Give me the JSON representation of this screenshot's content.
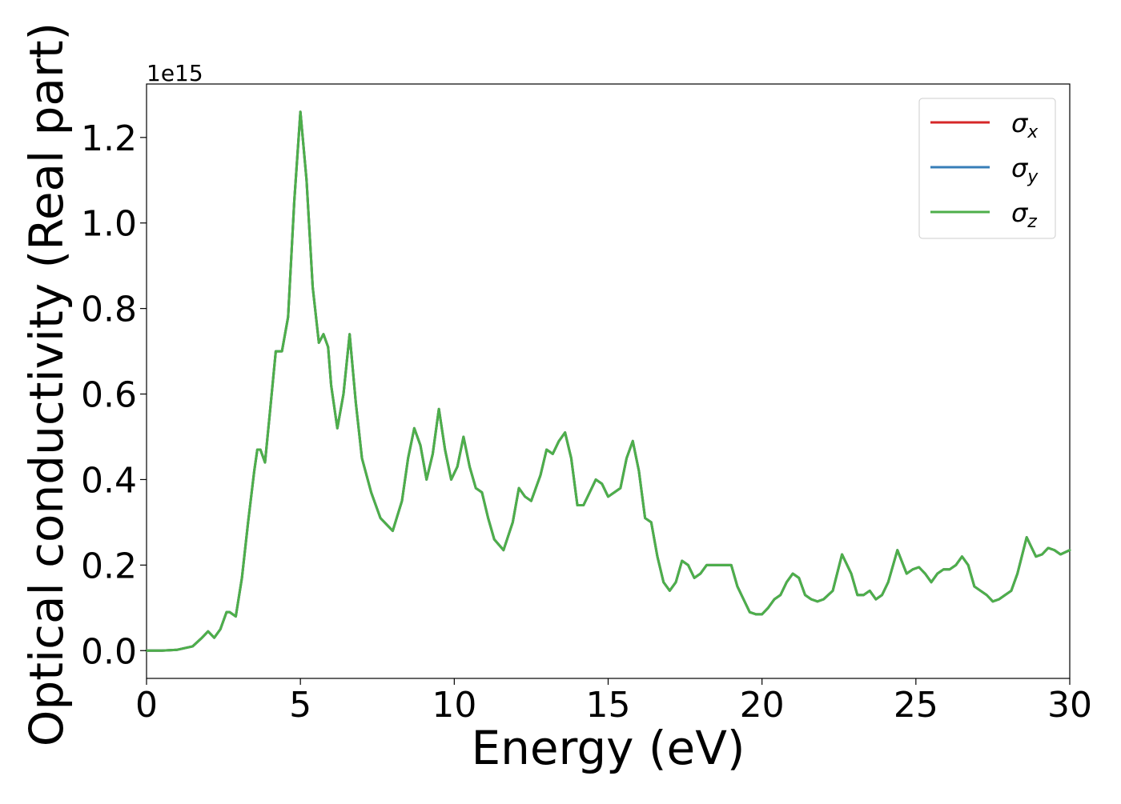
{
  "chart_data": {
    "type": "line",
    "xlabel": "Energy (eV)",
    "ylabel": "Optical conductivity (Real part)",
    "y_multiplier": "1e15",
    "xlim": [
      0,
      30
    ],
    "ylim": [
      -0.065,
      1.325
    ],
    "xticks": [
      0,
      5,
      10,
      15,
      20,
      25,
      30
    ],
    "xtick_labels": [
      "0",
      "5",
      "10",
      "15",
      "20",
      "25",
      "30"
    ],
    "yticks": [
      0.0,
      0.2,
      0.4,
      0.6,
      0.8,
      1.0,
      1.2
    ],
    "ytick_labels": [
      "0.0",
      "0.2",
      "0.4",
      "0.6",
      "0.8",
      "1.0",
      "1.2"
    ],
    "grid": false,
    "legend_position": "top-right",
    "x": [
      0,
      0.5,
      1.0,
      1.5,
      1.8,
      2.0,
      2.2,
      2.4,
      2.6,
      2.7,
      2.9,
      3.1,
      3.3,
      3.5,
      3.6,
      3.7,
      3.85,
      4.0,
      4.2,
      4.4,
      4.6,
      4.8,
      5.0,
      5.2,
      5.4,
      5.6,
      5.75,
      5.9,
      6.0,
      6.2,
      6.4,
      6.6,
      6.8,
      7.0,
      7.3,
      7.6,
      8.0,
      8.3,
      8.5,
      8.7,
      8.9,
      9.1,
      9.3,
      9.5,
      9.7,
      9.9,
      10.1,
      10.3,
      10.5,
      10.7,
      10.9,
      11.1,
      11.3,
      11.6,
      11.9,
      12.1,
      12.3,
      12.5,
      12.8,
      13.0,
      13.2,
      13.4,
      13.6,
      13.8,
      14.0,
      14.2,
      14.4,
      14.6,
      14.8,
      15.0,
      15.2,
      15.4,
      15.6,
      15.8,
      16.0,
      16.2,
      16.4,
      16.6,
      16.8,
      17.0,
      17.2,
      17.4,
      17.6,
      17.8,
      18.0,
      18.2,
      18.4,
      18.6,
      18.8,
      19.0,
      19.2,
      19.4,
      19.6,
      19.8,
      20.0,
      20.2,
      20.4,
      20.6,
      20.8,
      21.0,
      21.2,
      21.4,
      21.6,
      21.8,
      22.0,
      22.3,
      22.6,
      22.9,
      23.1,
      23.3,
      23.5,
      23.7,
      23.9,
      24.1,
      24.4,
      24.7,
      24.9,
      25.1,
      25.3,
      25.5,
      25.7,
      25.9,
      26.1,
      26.3,
      26.5,
      26.7,
      26.9,
      27.1,
      27.3,
      27.5,
      27.7,
      27.9,
      28.1,
      28.3,
      28.6,
      28.9,
      29.1,
      29.3,
      29.5,
      29.7,
      30.0
    ],
    "series": [
      {
        "name": "σx",
        "symbol": "σ",
        "subscript": "x",
        "color": "#d62728",
        "values": [
          0.0,
          0.0,
          0.002,
          0.01,
          0.03,
          0.045,
          0.03,
          0.05,
          0.09,
          0.09,
          0.08,
          0.17,
          0.3,
          0.42,
          0.47,
          0.47,
          0.44,
          0.55,
          0.7,
          0.7,
          0.78,
          1.05,
          1.26,
          1.1,
          0.85,
          0.72,
          0.74,
          0.71,
          0.62,
          0.52,
          0.6,
          0.74,
          0.58,
          0.45,
          0.37,
          0.31,
          0.28,
          0.35,
          0.45,
          0.52,
          0.48,
          0.4,
          0.46,
          0.565,
          0.47,
          0.4,
          0.43,
          0.5,
          0.43,
          0.38,
          0.37,
          0.31,
          0.26,
          0.235,
          0.3,
          0.38,
          0.36,
          0.35,
          0.41,
          0.47,
          0.46,
          0.49,
          0.51,
          0.45,
          0.34,
          0.34,
          0.37,
          0.4,
          0.39,
          0.36,
          0.37,
          0.38,
          0.45,
          0.49,
          0.42,
          0.31,
          0.3,
          0.22,
          0.16,
          0.14,
          0.16,
          0.21,
          0.2,
          0.17,
          0.18,
          0.2,
          0.2,
          0.2,
          0.2,
          0.2,
          0.15,
          0.12,
          0.09,
          0.085,
          0.085,
          0.1,
          0.12,
          0.13,
          0.16,
          0.18,
          0.17,
          0.13,
          0.12,
          0.115,
          0.12,
          0.14,
          0.225,
          0.18,
          0.13,
          0.13,
          0.14,
          0.12,
          0.13,
          0.16,
          0.235,
          0.18,
          0.19,
          0.195,
          0.18,
          0.16,
          0.18,
          0.19,
          0.19,
          0.2,
          0.22,
          0.2,
          0.15,
          0.14,
          0.13,
          0.115,
          0.12,
          0.13,
          0.14,
          0.18,
          0.265,
          0.22,
          0.225,
          0.24,
          0.235,
          0.225,
          0.235
        ]
      },
      {
        "name": "σy",
        "symbol": "σ",
        "subscript": "y",
        "color": "#377eb8",
        "values": [
          0.0,
          0.0,
          0.002,
          0.01,
          0.03,
          0.045,
          0.03,
          0.05,
          0.09,
          0.09,
          0.08,
          0.17,
          0.3,
          0.42,
          0.47,
          0.47,
          0.44,
          0.55,
          0.7,
          0.7,
          0.78,
          1.05,
          1.26,
          1.1,
          0.85,
          0.72,
          0.74,
          0.71,
          0.62,
          0.52,
          0.6,
          0.74,
          0.58,
          0.45,
          0.37,
          0.31,
          0.28,
          0.35,
          0.45,
          0.52,
          0.48,
          0.4,
          0.46,
          0.565,
          0.47,
          0.4,
          0.43,
          0.5,
          0.43,
          0.38,
          0.37,
          0.31,
          0.26,
          0.235,
          0.3,
          0.38,
          0.36,
          0.35,
          0.41,
          0.47,
          0.46,
          0.49,
          0.51,
          0.45,
          0.34,
          0.34,
          0.37,
          0.4,
          0.39,
          0.36,
          0.37,
          0.38,
          0.45,
          0.49,
          0.42,
          0.31,
          0.3,
          0.22,
          0.16,
          0.14,
          0.16,
          0.21,
          0.2,
          0.17,
          0.18,
          0.2,
          0.2,
          0.2,
          0.2,
          0.2,
          0.15,
          0.12,
          0.09,
          0.085,
          0.085,
          0.1,
          0.12,
          0.13,
          0.16,
          0.18,
          0.17,
          0.13,
          0.12,
          0.115,
          0.12,
          0.14,
          0.225,
          0.18,
          0.13,
          0.13,
          0.14,
          0.12,
          0.13,
          0.16,
          0.235,
          0.18,
          0.19,
          0.195,
          0.18,
          0.16,
          0.18,
          0.19,
          0.19,
          0.2,
          0.22,
          0.2,
          0.15,
          0.14,
          0.13,
          0.115,
          0.12,
          0.13,
          0.14,
          0.18,
          0.265,
          0.22,
          0.225,
          0.24,
          0.235,
          0.225,
          0.235
        ]
      },
      {
        "name": "σz",
        "symbol": "σ",
        "subscript": "z",
        "color": "#4daf4a",
        "values": [
          0.0,
          0.0,
          0.002,
          0.01,
          0.03,
          0.045,
          0.03,
          0.05,
          0.09,
          0.09,
          0.08,
          0.17,
          0.3,
          0.42,
          0.47,
          0.47,
          0.44,
          0.55,
          0.7,
          0.7,
          0.78,
          1.05,
          1.26,
          1.1,
          0.85,
          0.72,
          0.74,
          0.71,
          0.62,
          0.52,
          0.6,
          0.74,
          0.58,
          0.45,
          0.37,
          0.31,
          0.28,
          0.35,
          0.45,
          0.52,
          0.48,
          0.4,
          0.46,
          0.565,
          0.47,
          0.4,
          0.43,
          0.5,
          0.43,
          0.38,
          0.37,
          0.31,
          0.26,
          0.235,
          0.3,
          0.38,
          0.36,
          0.35,
          0.41,
          0.47,
          0.46,
          0.49,
          0.51,
          0.45,
          0.34,
          0.34,
          0.37,
          0.4,
          0.39,
          0.36,
          0.37,
          0.38,
          0.45,
          0.49,
          0.42,
          0.31,
          0.3,
          0.22,
          0.16,
          0.14,
          0.16,
          0.21,
          0.2,
          0.17,
          0.18,
          0.2,
          0.2,
          0.2,
          0.2,
          0.2,
          0.15,
          0.12,
          0.09,
          0.085,
          0.085,
          0.1,
          0.12,
          0.13,
          0.16,
          0.18,
          0.17,
          0.13,
          0.12,
          0.115,
          0.12,
          0.14,
          0.225,
          0.18,
          0.13,
          0.13,
          0.14,
          0.12,
          0.13,
          0.16,
          0.235,
          0.18,
          0.19,
          0.195,
          0.18,
          0.16,
          0.18,
          0.19,
          0.19,
          0.2,
          0.22,
          0.2,
          0.15,
          0.14,
          0.13,
          0.115,
          0.12,
          0.13,
          0.14,
          0.18,
          0.265,
          0.22,
          0.225,
          0.24,
          0.235,
          0.225,
          0.235
        ]
      }
    ]
  }
}
